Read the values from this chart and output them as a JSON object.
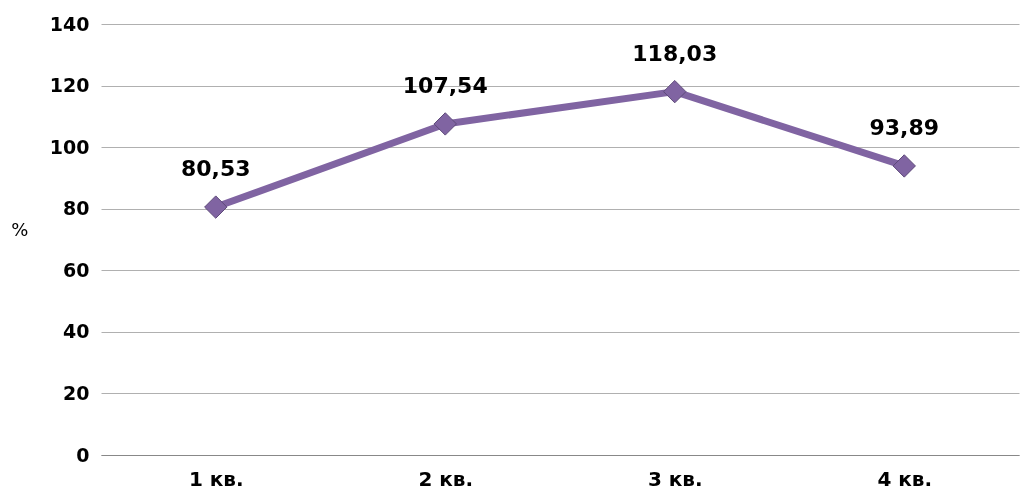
{
  "chart_data": {
    "type": "line",
    "ylabel": "%",
    "categories": [
      "1 кв.",
      "2 кв.",
      "3 кв.",
      "4 кв."
    ],
    "series": [
      {
        "color": "#8064a2",
        "values": [
          80.53,
          107.54,
          118.03,
          93.89
        ],
        "value_labels": [
          "80,53",
          "107,54",
          "118,03",
          "93,89"
        ]
      }
    ],
    "ylim": [
      0,
      140
    ],
    "yticks": [
      0,
      20,
      40,
      60,
      80,
      100,
      120,
      140
    ],
    "grid": "y",
    "marker": "diamond",
    "line_style": "solid"
  }
}
